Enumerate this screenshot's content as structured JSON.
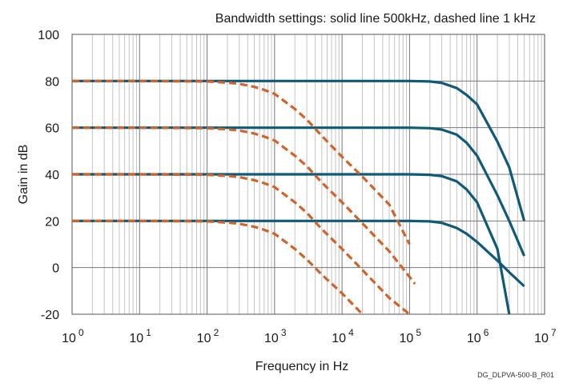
{
  "chart_data": {
    "type": "line",
    "title": "Bandwidth settings: solid line 500kHz, dashed line 1 kHz",
    "xlabel": "Frequency in Hz",
    "ylabel": "Gain in dB",
    "x_scale": "log",
    "xlim": [
      1,
      10000000
    ],
    "ylim": [
      -20,
      100
    ],
    "x_ticks": [
      {
        "base": "10",
        "exp": "0",
        "value": 1
      },
      {
        "base": "10",
        "exp": "1",
        "value": 10
      },
      {
        "base": "10",
        "exp": "2",
        "value": 100
      },
      {
        "base": "10",
        "exp": "3",
        "value": 1000
      },
      {
        "base": "10",
        "exp": "4",
        "value": 10000
      },
      {
        "base": "10",
        "exp": "5",
        "value": 100000
      },
      {
        "base": "10",
        "exp": "6",
        "value": 1000000
      },
      {
        "base": "10",
        "exp": "7",
        "value": 10000000
      }
    ],
    "y_ticks": [
      "100",
      "80",
      "60",
      "40",
      "20",
      "0",
      "-20"
    ],
    "grid": true,
    "figure_id": "DG_DLPVA-500-B_R01",
    "series": [
      {
        "style": "solid",
        "color": "#0e5a78",
        "x": [
          1,
          10,
          100,
          1000,
          10000,
          100000,
          200000,
          300000,
          500000,
          700000,
          1000000,
          2000000,
          3000000,
          5000000
        ],
        "y": [
          20,
          20,
          20,
          20,
          20,
          20,
          19.8,
          19.2,
          17,
          14.5,
          11,
          3,
          -2,
          -8
        ]
      },
      {
        "style": "solid",
        "color": "#0e5a78",
        "x": [
          1,
          10,
          100,
          1000,
          10000,
          100000,
          200000,
          300000,
          500000,
          700000,
          1000000,
          2000000,
          3000000
        ],
        "y": [
          40,
          40,
          40,
          40,
          40,
          40,
          39.8,
          39.2,
          37,
          33.5,
          28,
          8,
          -20
        ]
      },
      {
        "style": "solid",
        "color": "#0e5a78",
        "x": [
          1,
          10,
          100,
          1000,
          10000,
          100000,
          200000,
          300000,
          500000,
          700000,
          1000000,
          2000000,
          3000000,
          5000000
        ],
        "y": [
          60,
          60,
          60,
          60,
          60,
          60,
          59.8,
          59.2,
          57,
          53.5,
          48,
          31,
          20,
          5
        ]
      },
      {
        "style": "solid",
        "color": "#0e5a78",
        "x": [
          1,
          10,
          100,
          1000,
          10000,
          100000,
          200000,
          300000,
          500000,
          700000,
          1000000,
          2000000,
          3000000,
          5000000
        ],
        "y": [
          80,
          80,
          80,
          80,
          80,
          80,
          79.8,
          79.2,
          77,
          74,
          70,
          54,
          43,
          20
        ]
      },
      {
        "style": "dashed",
        "color": "#d0632a",
        "x": [
          1,
          10,
          100,
          200,
          300,
          500,
          700,
          1000,
          2000,
          3000,
          5000,
          10000,
          20000
        ],
        "y": [
          20,
          20,
          19.8,
          19.3,
          18.8,
          17.5,
          16.2,
          14.5,
          8,
          3.5,
          -3,
          -11,
          -20
        ]
      },
      {
        "style": "dashed",
        "color": "#d0632a",
        "x": [
          1,
          10,
          100,
          200,
          300,
          500,
          700,
          1000,
          2000,
          3000,
          5000,
          10000,
          20000,
          50000,
          100000
        ],
        "y": [
          40,
          40,
          39.8,
          39.3,
          38.8,
          37.5,
          36.2,
          34.5,
          28,
          23.5,
          16.5,
          8,
          -1,
          -13,
          -20
        ]
      },
      {
        "style": "dashed",
        "color": "#d0632a",
        "x": [
          1,
          10,
          100,
          200,
          300,
          500,
          700,
          1000,
          2000,
          3000,
          5000,
          10000,
          20000,
          50000,
          100000,
          120000
        ],
        "y": [
          60,
          60,
          59.8,
          59.3,
          58.8,
          57.5,
          56.2,
          54.5,
          48,
          43.5,
          36.5,
          28,
          19,
          7,
          -4,
          -7
        ]
      },
      {
        "style": "dashed",
        "color": "#d0632a",
        "x": [
          1,
          10,
          100,
          200,
          300,
          500,
          700,
          1000,
          2000,
          3000,
          5000,
          10000,
          20000,
          50000,
          100000
        ],
        "y": [
          80,
          80,
          79.8,
          79.3,
          78.8,
          77.5,
          76.2,
          74.5,
          68,
          63.5,
          56.5,
          47.5,
          39,
          27,
          10
        ]
      }
    ]
  }
}
